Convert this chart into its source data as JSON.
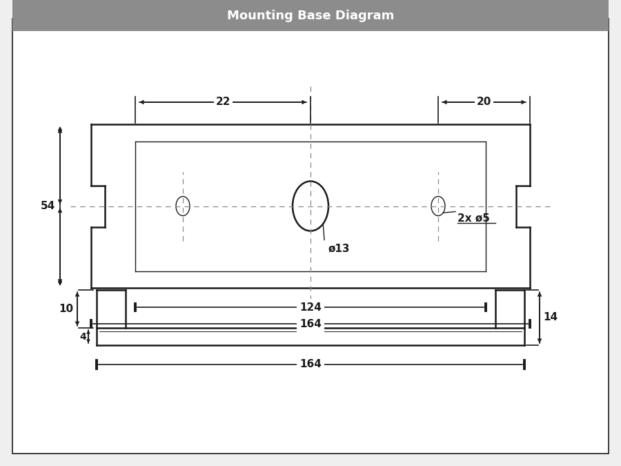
{
  "title": "Mounting Base Diagram",
  "title_bg": "#8c8c8c",
  "title_color": "#ffffff",
  "bg_color": "#efefef",
  "line_color": "#1a1a1a",
  "font_size": 10,
  "title_font_size": 13,
  "annotations": {
    "dim_10": "10",
    "dim_4": "4",
    "dim_14": "14",
    "dim_164_top": "164",
    "dim_22": "22",
    "dim_20": "20",
    "dim_54": "54",
    "dim_124": "124",
    "dim_164_bottom": "164",
    "label_phi13": "ø13",
    "label_phi5": "2x ø5"
  }
}
